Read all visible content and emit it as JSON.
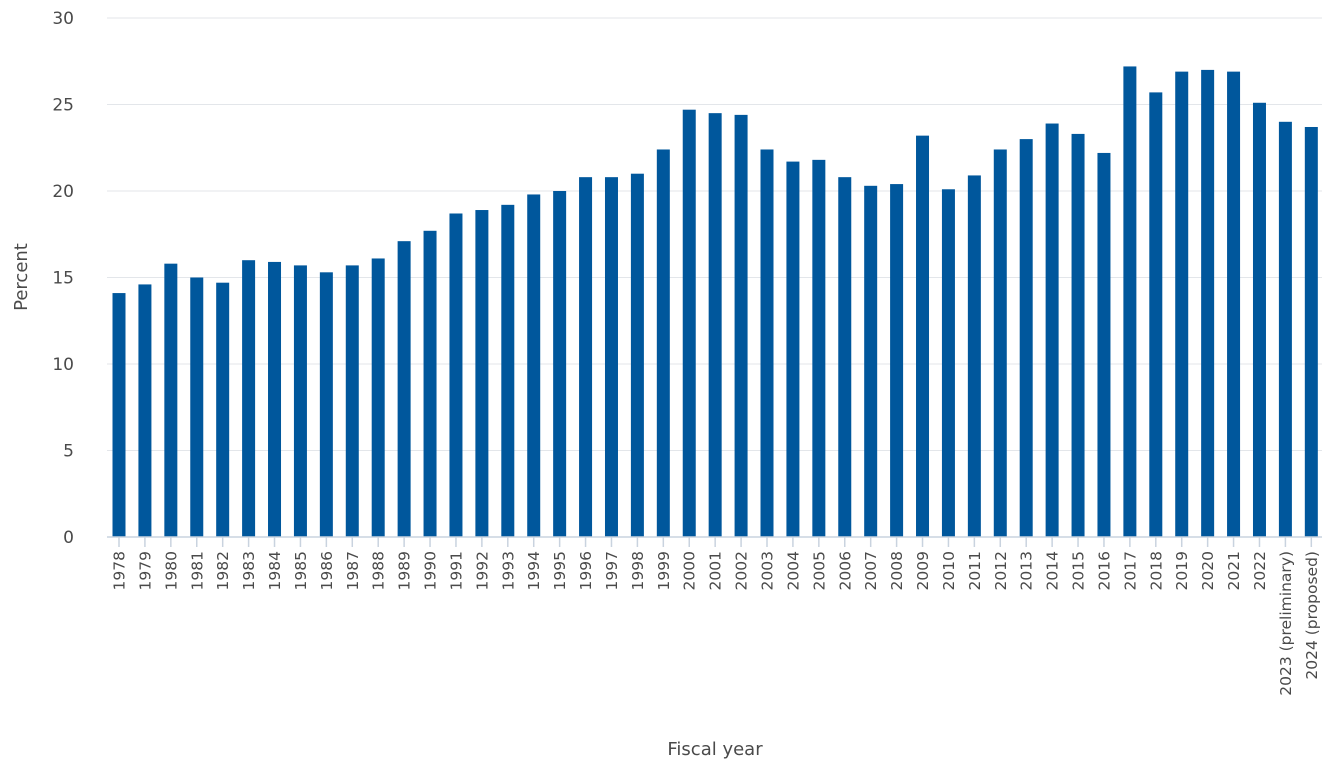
{
  "chart_data": {
    "type": "bar",
    "xlabel": "Fiscal year",
    "ylabel": "Percent",
    "ylim": [
      0,
      30
    ],
    "yticks": [
      0,
      5,
      10,
      15,
      20,
      25,
      30
    ],
    "grid": true,
    "legend": "none",
    "bar_color": "#00579c",
    "categories": [
      "1978",
      "1979",
      "1980",
      "1981",
      "1982",
      "1983",
      "1984",
      "1985",
      "1986",
      "1987",
      "1988",
      "1989",
      "1990",
      "1991",
      "1992",
      "1993",
      "1994",
      "1995",
      "1996",
      "1997",
      "1998",
      "1999",
      "2000",
      "2001",
      "2002",
      "2003",
      "2004",
      "2005",
      "2006",
      "2007",
      "2008",
      "2009",
      "2010",
      "2011",
      "2012",
      "2013",
      "2014",
      "2015",
      "2016",
      "2017",
      "2018",
      "2019",
      "2020",
      "2021",
      "2022",
      "2023 (preliminary)",
      "2024 (proposed)"
    ],
    "values": [
      14.1,
      14.6,
      15.8,
      15.0,
      14.7,
      16.0,
      15.9,
      15.7,
      15.3,
      15.7,
      16.1,
      17.1,
      17.7,
      18.7,
      18.9,
      19.2,
      19.8,
      20.0,
      20.8,
      20.8,
      21.0,
      22.4,
      24.7,
      24.5,
      24.4,
      22.4,
      21.7,
      21.8,
      20.8,
      20.3,
      20.4,
      23.2,
      20.1,
      20.9,
      22.4,
      23.0,
      23.9,
      23.3,
      22.2,
      27.2,
      25.7,
      26.9,
      27.0,
      26.9,
      25.1,
      24.0,
      23.7
    ]
  }
}
